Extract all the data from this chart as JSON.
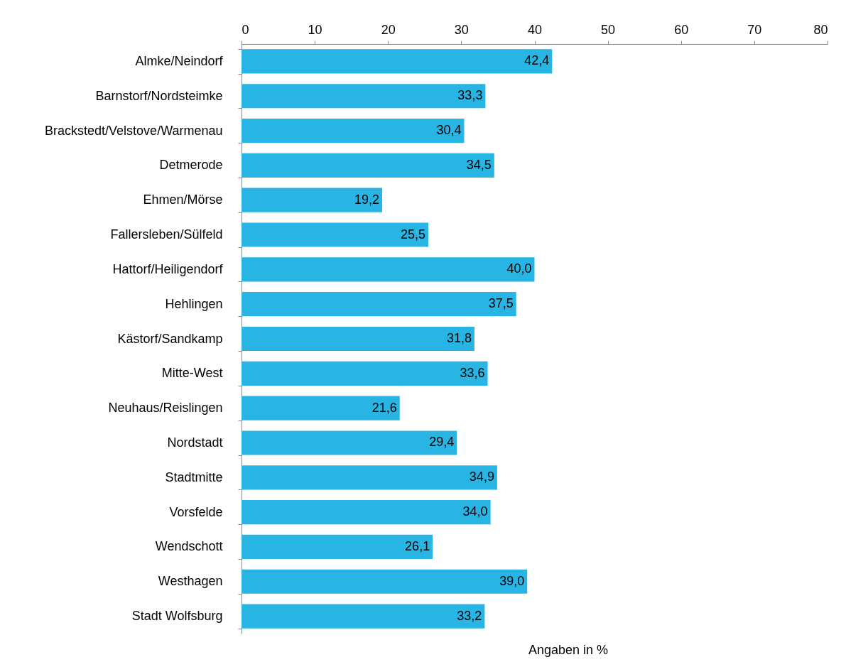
{
  "chart_data": {
    "type": "bar",
    "orientation": "horizontal",
    "xlabel": "Angaben in %",
    "categories": [
      "Almke/Neindorf",
      "Barnstorf/Nordsteimke",
      "Brackstedt/Velstove/Warmenau",
      "Detmerode",
      "Ehmen/Mörse",
      "Fallersleben/Sülfeld",
      "Hattorf/Heiligendorf",
      "Hehlingen",
      "Kästorf/Sandkamp",
      "Mitte-West",
      "Neuhaus/Reislingen",
      "Nordstadt",
      "Stadtmitte",
      "Vorsfelde",
      "Wendschott",
      "Westhagen",
      "Stadt Wolfsburg"
    ],
    "values": [
      42.4,
      33.3,
      30.4,
      34.5,
      19.2,
      25.5,
      40.0,
      37.5,
      31.8,
      33.6,
      21.6,
      29.4,
      34.9,
      34.0,
      26.1,
      39.0,
      33.2
    ],
    "value_labels": [
      "42,4",
      "33,3",
      "30,4",
      "34,5",
      "19,2",
      "25,5",
      "40,0",
      "37,5",
      "31,8",
      "33,6",
      "21,6",
      "29,4",
      "34,9",
      "34,0",
      "26,1",
      "39,0",
      "33,2"
    ],
    "color": "#29b5e3",
    "xlim": [
      0,
      80
    ],
    "xticks": [
      0,
      10,
      20,
      30,
      40,
      50,
      60,
      70,
      80
    ],
    "grid": false,
    "legend": false
  }
}
